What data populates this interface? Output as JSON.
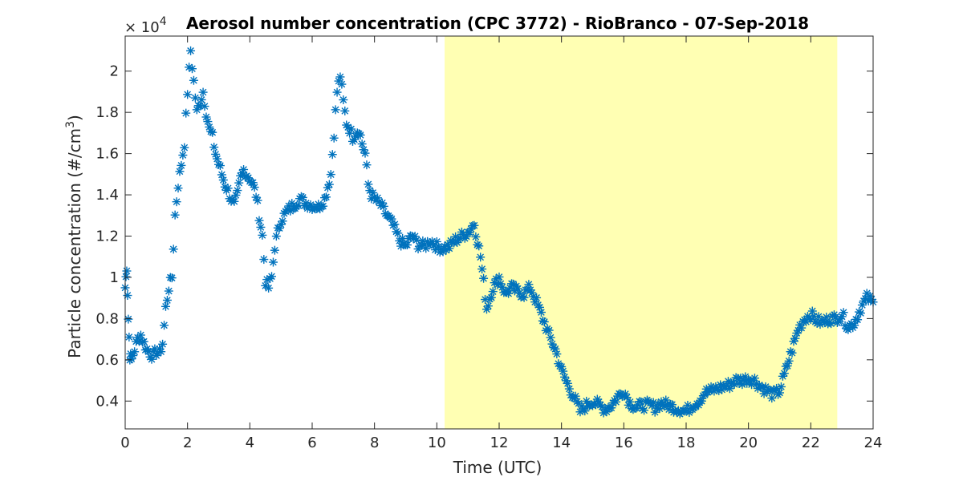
{
  "chart_data": {
    "type": "scatter",
    "title": "Aerosol number concentration (CPC 3772) - RioBranco - 07-Sep-2018",
    "xlabel": "Time (UTC)",
    "ylabel_main": "Particle concentration (#/cm",
    "ylabel_sup": "3",
    "ylabel_close": ")",
    "y_multiplier_base": "× 10",
    "y_multiplier_exp": "4",
    "xlim": [
      0,
      24
    ],
    "ylim": [
      0.265,
      2.17
    ],
    "xticks": [
      0,
      2,
      4,
      6,
      8,
      10,
      12,
      14,
      16,
      18,
      20,
      22,
      24
    ],
    "yticks": [
      0.4,
      0.6,
      0.8,
      1.0,
      1.2,
      1.4,
      1.6,
      1.8,
      2.0
    ],
    "ytick_labels": [
      "0.4",
      "0.6",
      "0.8",
      "1",
      "1.2",
      "1.4",
      "1.6",
      "1.8",
      "2"
    ],
    "shaded_region": {
      "x_start": 10.25,
      "x_end": 22.85,
      "color": "#ffffb3"
    },
    "series_color": "#0072bd",
    "marker": "asterisk",
    "series": [
      {
        "x": [
          0,
          0.05,
          0.1,
          0.15,
          0.2,
          0.3,
          0.4,
          0.5,
          0.6,
          0.7,
          0.8,
          0.9,
          1.0,
          1.1,
          1.2,
          1.3,
          1.4,
          1.5,
          1.6,
          1.7,
          1.8,
          1.9,
          2.0,
          2.1,
          2.2,
          2.3,
          2.4,
          2.5,
          2.6,
          2.7,
          2.8,
          2.9,
          3.0,
          3.1,
          3.2,
          3.3,
          3.4,
          3.5,
          3.6,
          3.7,
          3.8,
          3.9,
          4.0,
          4.1,
          4.2,
          4.3,
          4.4,
          4.5,
          4.6,
          4.7,
          4.8,
          4.9,
          5.0,
          5.2,
          5.4,
          5.6,
          5.8,
          6.0,
          6.2,
          6.4,
          6.6,
          6.8,
          6.9,
          7.0,
          7.1,
          7.2,
          7.3,
          7.4,
          7.5,
          7.6,
          7.7,
          7.8,
          7.9,
          8.0,
          8.2,
          8.4,
          8.6,
          8.8,
          9.0,
          9.2,
          9.4,
          9.6,
          9.8,
          10.0,
          10.2,
          10.4,
          10.6,
          10.8,
          11.0,
          11.2,
          11.4,
          11.6,
          11.8,
          12.0,
          12.2,
          12.4,
          12.6,
          12.8,
          13.0,
          13.2,
          13.4,
          13.6,
          13.8,
          14.0,
          14.2,
          14.4,
          14.6,
          14.8,
          15.0,
          15.2,
          15.4,
          15.6,
          15.8,
          16.0,
          16.2,
          16.4,
          16.6,
          16.8,
          17.0,
          17.2,
          17.4,
          17.6,
          17.8,
          18.0,
          18.2,
          18.4,
          18.6,
          18.8,
          19.0,
          19.2,
          19.4,
          19.6,
          19.8,
          20.0,
          20.2,
          20.4,
          20.6,
          20.8,
          21.0,
          21.2,
          21.4,
          21.6,
          21.8,
          22.0,
          22.2,
          22.4,
          22.6,
          22.8,
          23.0,
          23.2,
          23.4,
          23.6,
          23.8,
          24.0
        ],
        "y": [
          0.95,
          1.05,
          0.8,
          0.62,
          0.6,
          0.65,
          0.7,
          0.72,
          0.68,
          0.65,
          0.63,
          0.62,
          0.64,
          0.63,
          0.68,
          0.85,
          0.95,
          1.0,
          1.3,
          1.45,
          1.55,
          1.65,
          1.9,
          2.1,
          1.95,
          1.8,
          1.85,
          1.9,
          1.8,
          1.72,
          1.68,
          1.6,
          1.55,
          1.5,
          1.45,
          1.42,
          1.38,
          1.35,
          1.4,
          1.48,
          1.52,
          1.5,
          1.48,
          1.45,
          1.4,
          1.3,
          1.2,
          0.98,
          0.95,
          1.0,
          1.15,
          1.22,
          1.28,
          1.32,
          1.35,
          1.38,
          1.36,
          1.35,
          1.34,
          1.38,
          1.5,
          1.9,
          1.98,
          1.85,
          1.75,
          1.72,
          1.68,
          1.7,
          1.72,
          1.65,
          1.6,
          1.45,
          1.4,
          1.38,
          1.35,
          1.3,
          1.25,
          1.18,
          1.15,
          1.2,
          1.16,
          1.15,
          1.18,
          1.15,
          1.14,
          1.15,
          1.18,
          1.2,
          1.22,
          1.26,
          1.1,
          0.85,
          0.95,
          1.0,
          0.92,
          0.95,
          0.93,
          0.92,
          0.95,
          0.88,
          0.8,
          0.72,
          0.65,
          0.55,
          0.48,
          0.42,
          0.35,
          0.38,
          0.4,
          0.38,
          0.36,
          0.38,
          0.42,
          0.45,
          0.39,
          0.37,
          0.38,
          0.38,
          0.37,
          0.39,
          0.38,
          0.37,
          0.36,
          0.35,
          0.38,
          0.4,
          0.44,
          0.45,
          0.46,
          0.47,
          0.48,
          0.5,
          0.5,
          0.51,
          0.5,
          0.47,
          0.45,
          0.43,
          0.45,
          0.55,
          0.65,
          0.75,
          0.8,
          0.82,
          0.79,
          0.78,
          0.8,
          0.8,
          0.82,
          0.76,
          0.78,
          0.85,
          0.9,
          0.88
        ]
      }
    ]
  }
}
